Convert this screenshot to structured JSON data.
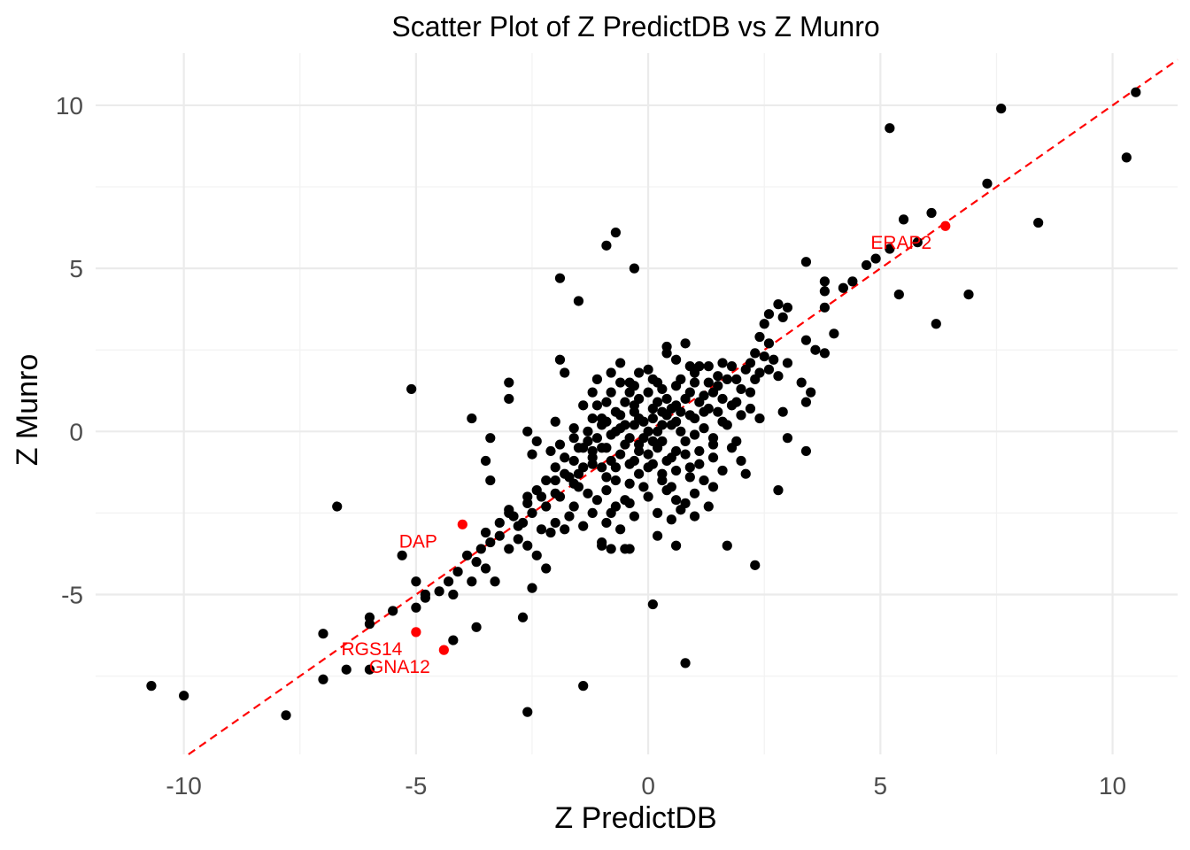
{
  "chart_data": {
    "type": "scatter",
    "title": "Scatter Plot of Z PredictDB vs Z Munro",
    "xlabel": "Z PredictDB",
    "ylabel": "Z Munro",
    "xlim": [
      -11.9,
      11.4
    ],
    "ylim": [
      -9.9,
      11.6
    ],
    "x_ticks": [
      -10,
      -5,
      0,
      5,
      10
    ],
    "y_ticks": [
      -5,
      0,
      5,
      10
    ],
    "x_tick_labels": [
      "-10",
      "-5",
      "0",
      "5",
      "10"
    ],
    "y_tick_labels": [
      "-5",
      "0",
      "5",
      "10"
    ],
    "grid": true,
    "reference_line": {
      "type": "identity",
      "slope": 1,
      "intercept": 0,
      "style": "dashed",
      "color": "#ff0000"
    },
    "point_color": "#000000",
    "highlight_color": "#ff0000",
    "points": [
      [
        10.5,
        10.4
      ],
      [
        7.6,
        9.9
      ],
      [
        5.2,
        9.3
      ],
      [
        10.3,
        8.4
      ],
      [
        7.3,
        7.6
      ],
      [
        8.4,
        6.4
      ],
      [
        5.5,
        6.5
      ],
      [
        6.1,
        6.7
      ],
      [
        5.8,
        5.8
      ],
      [
        5.2,
        5.6
      ],
      [
        4.9,
        5.3
      ],
      [
        4.7,
        5.1
      ],
      [
        3.4,
        5.2
      ],
      [
        4.4,
        4.6
      ],
      [
        4.2,
        4.4
      ],
      [
        3.8,
        4.6
      ],
      [
        3.8,
        4.3
      ],
      [
        5.4,
        4.2
      ],
      [
        6.9,
        4.2
      ],
      [
        6.2,
        3.3
      ],
      [
        3.8,
        3.8
      ],
      [
        4.0,
        3.0
      ],
      [
        3.8,
        2.4
      ],
      [
        3.4,
        2.8
      ],
      [
        3.6,
        2.5
      ],
      [
        3.0,
        3.8
      ],
      [
        2.9,
        3.5
      ],
      [
        2.6,
        3.6
      ],
      [
        2.8,
        3.9
      ],
      [
        2.5,
        3.3
      ],
      [
        2.4,
        2.9
      ],
      [
        2.6,
        2.7
      ],
      [
        3.0,
        2.1
      ],
      [
        2.7,
        2.2
      ],
      [
        2.5,
        2.3
      ],
      [
        2.3,
        2.4
      ],
      [
        2.2,
        2.1
      ],
      [
        2.4,
        1.8
      ],
      [
        2.1,
        1.9
      ],
      [
        1.9,
        1.6
      ],
      [
        1.8,
        2.0
      ],
      [
        1.6,
        2.1
      ],
      [
        2.2,
        1.2
      ],
      [
        1.3,
        2.0
      ],
      [
        1.1,
        2.0
      ],
      [
        0.9,
        2.0
      ],
      [
        0.6,
        2.2
      ],
      [
        0.4,
        2.4
      ],
      [
        0.8,
        2.7
      ],
      [
        0.4,
        2.6
      ],
      [
        1.5,
        1.4
      ],
      [
        1.4,
        1.2
      ],
      [
        1.6,
        1.0
      ],
      [
        1.8,
        0.8
      ],
      [
        1.2,
        0.6
      ],
      [
        1.0,
        0.4
      ],
      [
        0.6,
        0.8
      ],
      [
        0.4,
        0.5
      ],
      [
        0.2,
        0.9
      ],
      [
        0.0,
        1.2
      ],
      [
        -0.2,
        1.0
      ],
      [
        -0.4,
        1.2
      ],
      [
        -0.6,
        1.5
      ],
      [
        -0.8,
        1.8
      ],
      [
        -1.1,
        1.6
      ],
      [
        -0.6,
        2.1
      ],
      [
        -0.3,
        1.4
      ],
      [
        0.1,
        1.6
      ],
      [
        0.3,
        1.3
      ],
      [
        0.7,
        1.6
      ],
      [
        0.9,
        1.2
      ],
      [
        1.1,
        0.9
      ],
      [
        0.5,
        0.2
      ],
      [
        0.2,
        0.0
      ],
      [
        -0.1,
        0.3
      ],
      [
        -0.3,
        0.6
      ],
      [
        -0.5,
        0.9
      ],
      [
        -0.7,
        0.6
      ],
      [
        -0.9,
        0.9
      ],
      [
        -1.2,
        1.2
      ],
      [
        -1.4,
        0.8
      ],
      [
        -1.2,
        0.4
      ],
      [
        -1.0,
        0.2
      ],
      [
        -0.8,
        -0.1
      ],
      [
        -0.6,
        0.1
      ],
      [
        -0.4,
        -0.2
      ],
      [
        -0.2,
        -0.4
      ],
      [
        0.0,
        -0.7
      ],
      [
        0.2,
        -0.5
      ],
      [
        0.4,
        -0.9
      ],
      [
        0.6,
        -0.6
      ],
      [
        0.8,
        -0.3
      ],
      [
        1.0,
        -0.1
      ],
      [
        1.2,
        0.1
      ],
      [
        1.4,
        -0.2
      ],
      [
        1.7,
        0.2
      ],
      [
        2.0,
        0.5
      ],
      [
        2.2,
        0.7
      ],
      [
        3.3,
        1.5
      ],
      [
        3.5,
        1.2
      ],
      [
        -1.6,
        -0.2
      ],
      [
        -1.4,
        -0.5
      ],
      [
        -1.2,
        -0.8
      ],
      [
        -1.0,
        -1.1
      ],
      [
        -0.8,
        -0.9
      ],
      [
        -0.6,
        -0.7
      ],
      [
        -0.4,
        -1.0
      ],
      [
        -0.2,
        -1.3
      ],
      [
        0.0,
        -1.1
      ],
      [
        0.3,
        -1.5
      ],
      [
        0.6,
        -1.2
      ],
      [
        0.9,
        -1.4
      ],
      [
        1.1,
        -1.0
      ],
      [
        1.4,
        -0.8
      ],
      [
        1.8,
        -0.5
      ],
      [
        2.0,
        -0.9
      ],
      [
        2.1,
        -1.3
      ],
      [
        1.4,
        -1.7
      ],
      [
        1.0,
        -1.9
      ],
      [
        0.6,
        -2.1
      ],
      [
        -1.8,
        -0.8
      ],
      [
        -2.0,
        -1.1
      ],
      [
        -1.7,
        -1.4
      ],
      [
        -1.5,
        -1.7
      ],
      [
        -1.3,
        -1.9
      ],
      [
        -1.1,
        -2.1
      ],
      [
        -0.9,
        -1.8
      ],
      [
        -0.7,
        -2.3
      ],
      [
        -0.5,
        -2.1
      ],
      [
        -0.3,
        -2.6
      ],
      [
        -2.2,
        -1.5
      ],
      [
        -2.0,
        -1.9
      ],
      [
        -2.4,
        -1.8
      ],
      [
        -2.6,
        -2.0
      ],
      [
        -2.2,
        -2.3
      ],
      [
        -2.5,
        -2.5
      ],
      [
        -2.7,
        -2.8
      ],
      [
        -2.3,
        -3.0
      ],
      [
        -2.0,
        -2.8
      ],
      [
        -1.7,
        -2.6
      ],
      [
        -1.4,
        -2.9
      ],
      [
        -1.2,
        -2.5
      ],
      [
        -0.9,
        -2.8
      ],
      [
        -0.6,
        -3.0
      ],
      [
        -1.0,
        -3.4
      ],
      [
        -0.8,
        -3.6
      ],
      [
        -1.0,
        -3.5
      ],
      [
        -0.4,
        -3.6
      ],
      [
        0.2,
        -3.2
      ],
      [
        0.6,
        -3.5
      ],
      [
        -3.0,
        -2.5
      ],
      [
        -2.8,
        -2.9
      ],
      [
        -3.2,
        -3.2
      ],
      [
        -3.4,
        -3.4
      ],
      [
        -2.6,
        -3.5
      ],
      [
        -2.4,
        -3.8
      ],
      [
        -2.2,
        -4.2
      ],
      [
        -3.0,
        -3.6
      ],
      [
        -3.6,
        -3.6
      ],
      [
        -3.9,
        -3.8
      ],
      [
        -3.7,
        -4.0
      ],
      [
        -3.5,
        -4.2
      ],
      [
        -3.8,
        -4.6
      ],
      [
        -3.3,
        -4.6
      ],
      [
        -4.1,
        -4.3
      ],
      [
        -4.3,
        -4.6
      ],
      [
        -5.3,
        -3.8
      ],
      [
        -5.0,
        -4.6
      ],
      [
        -4.8,
        -5.1
      ],
      [
        -4.2,
        -5.0
      ],
      [
        -4.5,
        -4.9
      ],
      [
        -4.8,
        -5.0
      ],
      [
        -5.0,
        -5.4
      ],
      [
        -5.5,
        -5.5
      ],
      [
        -6.0,
        -5.7
      ],
      [
        -6.0,
        -5.9
      ],
      [
        -7.0,
        -6.2
      ],
      [
        -6.5,
        -7.3
      ],
      [
        -6.0,
        -7.3
      ],
      [
        -4.2,
        -6.4
      ],
      [
        -3.7,
        -6.0
      ],
      [
        -2.7,
        -5.7
      ],
      [
        -7.0,
        -7.6
      ],
      [
        -7.8,
        -8.7
      ],
      [
        -10.0,
        -8.1
      ],
      [
        -10.7,
        -7.8
      ],
      [
        -2.6,
        -8.6
      ],
      [
        -1.4,
        -7.8
      ],
      [
        0.8,
        -7.1
      ],
      [
        0.1,
        -5.3
      ],
      [
        2.3,
        -4.1
      ],
      [
        1.7,
        -3.5
      ],
      [
        1.3,
        -2.3
      ],
      [
        0.7,
        -2.4
      ],
      [
        -0.5,
        -3.6
      ],
      [
        -2.5,
        -4.8
      ],
      [
        -3.0,
        -2.4
      ],
      [
        -3.4,
        -1.5
      ],
      [
        -3.5,
        -0.9
      ],
      [
        -3.4,
        -0.2
      ],
      [
        -3.0,
        1.0
      ],
      [
        -3.0,
        1.5
      ],
      [
        -3.8,
        0.4
      ],
      [
        -5.1,
        1.3
      ],
      [
        -6.7,
        -2.3
      ],
      [
        -1.9,
        4.7
      ],
      [
        -1.5,
        4.0
      ],
      [
        -0.9,
        5.7
      ],
      [
        -0.7,
        6.1
      ],
      [
        -0.3,
        5.0
      ],
      [
        -1.9,
        2.2
      ],
      [
        -1.8,
        1.8
      ],
      [
        -0.6,
        0.5
      ],
      [
        -0.3,
        0.8
      ],
      [
        0.1,
        0.4
      ],
      [
        0.3,
        0.2
      ],
      [
        0.5,
        0.7
      ],
      [
        -0.1,
        -0.2
      ],
      [
        0.7,
        0.0
      ],
      [
        0.9,
        0.5
      ],
      [
        1.3,
        1.5
      ],
      [
        1.5,
        1.7
      ],
      [
        1.0,
        1.8
      ],
      [
        0.2,
        1.5
      ],
      [
        -0.2,
        1.8
      ],
      [
        -1.0,
        0.4
      ],
      [
        -1.3,
        0.0
      ],
      [
        -1.5,
        -0.5
      ],
      [
        -1.0,
        -0.5
      ],
      [
        -0.7,
        -1.5
      ],
      [
        0.4,
        -1.8
      ],
      [
        1.2,
        -1.5
      ],
      [
        1.6,
        -1.2
      ],
      [
        2.4,
        0.4
      ],
      [
        2.9,
        0.6
      ],
      [
        3.4,
        0.9
      ],
      [
        2.8,
        -1.8
      ],
      [
        3.0,
        -0.2
      ],
      [
        3.4,
        -0.6
      ],
      [
        1.9,
        -0.3
      ],
      [
        0.3,
        -0.3
      ],
      [
        0.5,
        -0.8
      ],
      [
        -0.5,
        -0.4
      ],
      [
        -0.3,
        -0.9
      ],
      [
        0.1,
        -1.0
      ],
      [
        -1.9,
        -0.4
      ],
      [
        -2.1,
        -0.6
      ],
      [
        -2.4,
        -0.3
      ],
      [
        -2.6,
        0.0
      ],
      [
        -2.0,
        0.3
      ],
      [
        -2.5,
        -0.7
      ],
      [
        -1.6,
        0.1
      ],
      [
        -1.1,
        0.8
      ],
      [
        -0.8,
        1.2
      ],
      [
        -0.4,
        1.5
      ],
      [
        0.0,
        1.9
      ],
      [
        0.6,
        1.4
      ],
      [
        1.0,
        1.5
      ],
      [
        1.3,
        0.7
      ],
      [
        0.8,
        1.0
      ],
      [
        0.6,
        0.3
      ],
      [
        0.3,
        0.6
      ],
      [
        0.0,
        0.0
      ],
      [
        -0.2,
        0.4
      ],
      [
        -0.5,
        0.2
      ],
      [
        -0.9,
        0.3
      ],
      [
        -1.1,
        -0.2
      ],
      [
        -1.3,
        -0.3
      ],
      [
        -1.6,
        -0.9
      ],
      [
        -1.8,
        -1.3
      ],
      [
        -2.0,
        -1.5
      ],
      [
        -1.5,
        -1.3
      ],
      [
        -1.2,
        -1.0
      ],
      [
        -0.9,
        -1.4
      ],
      [
        -0.7,
        -1.1
      ],
      [
        -0.4,
        -1.6
      ],
      [
        -0.1,
        -1.7
      ],
      [
        0.3,
        -1.3
      ],
      [
        0.5,
        -1.7
      ],
      [
        0.9,
        -1.1
      ],
      [
        1.1,
        -0.6
      ],
      [
        1.4,
        -0.4
      ],
      [
        1.6,
        0.3
      ],
      [
        1.9,
        0.9
      ],
      [
        2.0,
        1.3
      ],
      [
        2.3,
        1.6
      ],
      [
        2.6,
        1.9
      ],
      [
        2.8,
        1.7
      ],
      [
        1.7,
        1.6
      ],
      [
        1.5,
        0.6
      ],
      [
        1.2,
        1.1
      ],
      [
        0.7,
        0.6
      ],
      [
        0.4,
        1.0
      ],
      [
        0.1,
        0.7
      ],
      [
        -0.3,
        0.2
      ],
      [
        -0.7,
        0.0
      ],
      [
        -0.9,
        -0.5
      ],
      [
        -1.2,
        -0.6
      ],
      [
        -1.4,
        -1.1
      ],
      [
        -1.6,
        -1.6
      ],
      [
        -2.3,
        -2.0
      ],
      [
        -2.6,
        -2.2
      ],
      [
        -2.9,
        -2.6
      ],
      [
        -3.2,
        -2.8
      ],
      [
        -3.5,
        -3.1
      ],
      [
        -2.8,
        -3.3
      ],
      [
        -2.1,
        -3.1
      ],
      [
        -1.8,
        -3.0
      ],
      [
        -1.6,
        -2.3
      ],
      [
        -1.9,
        -2.0
      ],
      [
        -0.8,
        -2.5
      ],
      [
        -0.4,
        -2.2
      ],
      [
        0.0,
        -2.0
      ],
      [
        0.2,
        -2.5
      ],
      [
        0.5,
        -2.7
      ],
      [
        0.8,
        -2.2
      ],
      [
        1.0,
        -2.6
      ],
      [
        -0.2,
        -0.6
      ],
      [
        0.1,
        -0.3
      ],
      [
        0.8,
        -0.7
      ]
    ],
    "highlights": [
      {
        "label": "ERAP2",
        "x": 6.4,
        "y": 6.3
      },
      {
        "label": "DAP",
        "x": -4.0,
        "y": -2.85
      },
      {
        "label": "RGS14",
        "x": -5.0,
        "y": -6.15
      },
      {
        "label": "GNA12",
        "x": -4.4,
        "y": -6.7
      }
    ]
  }
}
